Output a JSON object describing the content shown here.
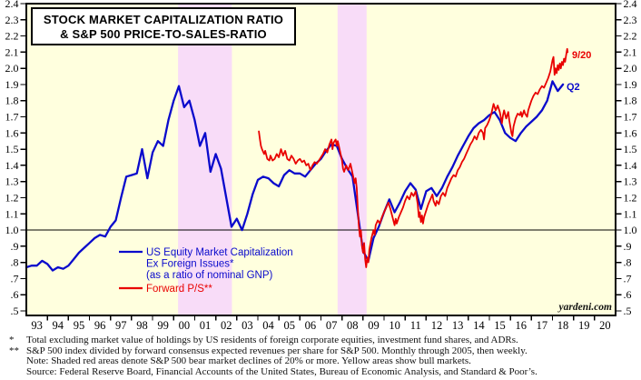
{
  "chart_data": {
    "type": "line",
    "title": "STOCK MARKET CAPITALIZATION RATIO & S&P 500 PRICE-TO-SALES-RATIO",
    "title_lines": [
      "STOCK MARKET CAPITALIZATION RATIO",
      "& S&P 500 PRICE-TO-SALES-RATIO"
    ],
    "watermark": "yardeni.com",
    "plot_bg_color": "#FFFFDE",
    "bear_band_color": "#F8DCF8",
    "x_axis": {
      "min": 1993,
      "max": 2021,
      "label_years": "93-20",
      "tick_unit": "year"
    },
    "y_axis": {
      "min": 0.5,
      "max": 2.4,
      "step": 0.1,
      "baseline": 1.0,
      "tick_labels_low": ".5 style below 1.0"
    },
    "grid": "off",
    "legend_position": "inside-bottom-left",
    "bands": [
      {
        "start": 2000.21,
        "end": 2002.77,
        "meaning": "S&P 500 bear market"
      },
      {
        "start": 2007.79,
        "end": 2009.17,
        "meaning": "S&P 500 bear market"
      }
    ],
    "series": [
      {
        "name": "US Equity Market Capitalization Ex Foreign Issues* (as a ratio of nominal GNP)",
        "legend_lines": [
          "US Equity Market Capitalization",
          "Ex Foreign Issues*",
          "(as a ratio of nominal GNP)"
        ],
        "color": "#0A0ACC",
        "end_label": "Q2",
        "points": [
          [
            1993.0,
            0.77
          ],
          [
            1993.25,
            0.78
          ],
          [
            1993.5,
            0.78
          ],
          [
            1993.75,
            0.81
          ],
          [
            1994.0,
            0.79
          ],
          [
            1994.25,
            0.75
          ],
          [
            1994.5,
            0.77
          ],
          [
            1994.75,
            0.76
          ],
          [
            1995.0,
            0.78
          ],
          [
            1995.25,
            0.82
          ],
          [
            1995.5,
            0.86
          ],
          [
            1995.75,
            0.89
          ],
          [
            1996.0,
            0.92
          ],
          [
            1996.25,
            0.95
          ],
          [
            1996.5,
            0.97
          ],
          [
            1996.75,
            0.96
          ],
          [
            1997.0,
            1.02
          ],
          [
            1997.25,
            1.06
          ],
          [
            1997.5,
            1.2
          ],
          [
            1997.75,
            1.33
          ],
          [
            1998.0,
            1.34
          ],
          [
            1998.25,
            1.35
          ],
          [
            1998.5,
            1.5
          ],
          [
            1998.75,
            1.32
          ],
          [
            1999.0,
            1.48
          ],
          [
            1999.25,
            1.55
          ],
          [
            1999.5,
            1.52
          ],
          [
            1999.75,
            1.68
          ],
          [
            2000.0,
            1.8
          ],
          [
            2000.25,
            1.89
          ],
          [
            2000.5,
            1.76
          ],
          [
            2000.75,
            1.8
          ],
          [
            2001.0,
            1.68
          ],
          [
            2001.25,
            1.52
          ],
          [
            2001.5,
            1.6
          ],
          [
            2001.75,
            1.36
          ],
          [
            2002.0,
            1.47
          ],
          [
            2002.25,
            1.38
          ],
          [
            2002.5,
            1.2
          ],
          [
            2002.75,
            1.02
          ],
          [
            2003.0,
            1.07
          ],
          [
            2003.25,
            1.0
          ],
          [
            2003.5,
            1.1
          ],
          [
            2003.75,
            1.22
          ],
          [
            2004.0,
            1.31
          ],
          [
            2004.25,
            1.33
          ],
          [
            2004.5,
            1.32
          ],
          [
            2004.75,
            1.29
          ],
          [
            2005.0,
            1.27
          ],
          [
            2005.25,
            1.34
          ],
          [
            2005.5,
            1.37
          ],
          [
            2005.75,
            1.35
          ],
          [
            2006.0,
            1.35
          ],
          [
            2006.25,
            1.33
          ],
          [
            2006.5,
            1.37
          ],
          [
            2006.75,
            1.41
          ],
          [
            2007.0,
            1.44
          ],
          [
            2007.25,
            1.49
          ],
          [
            2007.5,
            1.53
          ],
          [
            2007.75,
            1.52
          ],
          [
            2008.0,
            1.44
          ],
          [
            2008.25,
            1.38
          ],
          [
            2008.5,
            1.33
          ],
          [
            2008.75,
            1.1
          ],
          [
            2009.0,
            0.87
          ],
          [
            2009.25,
            0.81
          ],
          [
            2009.5,
            0.95
          ],
          [
            2009.75,
            1.02
          ],
          [
            2010.0,
            1.11
          ],
          [
            2010.25,
            1.19
          ],
          [
            2010.5,
            1.11
          ],
          [
            2010.75,
            1.17
          ],
          [
            2011.0,
            1.24
          ],
          [
            2011.25,
            1.29
          ],
          [
            2011.5,
            1.25
          ],
          [
            2011.75,
            1.13
          ],
          [
            2012.0,
            1.24
          ],
          [
            2012.25,
            1.26
          ],
          [
            2012.5,
            1.21
          ],
          [
            2012.75,
            1.26
          ],
          [
            2013.0,
            1.33
          ],
          [
            2013.25,
            1.39
          ],
          [
            2013.5,
            1.46
          ],
          [
            2013.75,
            1.52
          ],
          [
            2014.0,
            1.58
          ],
          [
            2014.25,
            1.63
          ],
          [
            2014.5,
            1.66
          ],
          [
            2014.75,
            1.68
          ],
          [
            2015.0,
            1.71
          ],
          [
            2015.25,
            1.73
          ],
          [
            2015.5,
            1.68
          ],
          [
            2015.75,
            1.6
          ],
          [
            2016.0,
            1.57
          ],
          [
            2016.25,
            1.55
          ],
          [
            2016.5,
            1.6
          ],
          [
            2016.75,
            1.64
          ],
          [
            2017.0,
            1.67
          ],
          [
            2017.25,
            1.7
          ],
          [
            2017.5,
            1.74
          ],
          [
            2017.75,
            1.8
          ],
          [
            2018.0,
            1.92
          ],
          [
            2018.25,
            1.86
          ],
          [
            2018.5,
            1.9
          ]
        ]
      },
      {
        "name": "Forward P/S**",
        "legend_lines": [
          "Forward P/S**"
        ],
        "color": "#E90000",
        "end_label": "9/20",
        "points": [
          [
            2004.05,
            1.61
          ],
          [
            2004.1,
            1.56
          ],
          [
            2004.15,
            1.52
          ],
          [
            2004.2,
            1.5
          ],
          [
            2004.3,
            1.47
          ],
          [
            2004.35,
            1.49
          ],
          [
            2004.45,
            1.44
          ],
          [
            2004.55,
            1.43
          ],
          [
            2004.6,
            1.46
          ],
          [
            2004.7,
            1.43
          ],
          [
            2004.8,
            1.44
          ],
          [
            2004.9,
            1.47
          ],
          [
            2005.0,
            1.45
          ],
          [
            2005.1,
            1.5
          ],
          [
            2005.2,
            1.46
          ],
          [
            2005.3,
            1.49
          ],
          [
            2005.4,
            1.44
          ],
          [
            2005.5,
            1.43
          ],
          [
            2005.6,
            1.46
          ],
          [
            2005.7,
            1.44
          ],
          [
            2005.8,
            1.41
          ],
          [
            2005.9,
            1.43
          ],
          [
            2006.0,
            1.44
          ],
          [
            2006.1,
            1.42
          ],
          [
            2006.2,
            1.43
          ],
          [
            2006.3,
            1.4
          ],
          [
            2006.4,
            1.41
          ],
          [
            2006.5,
            1.37
          ],
          [
            2006.6,
            1.4
          ],
          [
            2006.7,
            1.42
          ],
          [
            2006.8,
            1.41
          ],
          [
            2006.9,
            1.43
          ],
          [
            2007.0,
            1.45
          ],
          [
            2007.1,
            1.47
          ],
          [
            2007.2,
            1.5
          ],
          [
            2007.3,
            1.48
          ],
          [
            2007.4,
            1.53
          ],
          [
            2007.5,
            1.56
          ],
          [
            2007.55,
            1.5
          ],
          [
            2007.6,
            1.54
          ],
          [
            2007.7,
            1.56
          ],
          [
            2007.75,
            1.52
          ],
          [
            2007.8,
            1.55
          ],
          [
            2007.9,
            1.49
          ],
          [
            2008.0,
            1.43
          ],
          [
            2008.05,
            1.38
          ],
          [
            2008.1,
            1.36
          ],
          [
            2008.2,
            1.4
          ],
          [
            2008.3,
            1.37
          ],
          [
            2008.4,
            1.41
          ],
          [
            2008.5,
            1.35
          ],
          [
            2008.6,
            1.29
          ],
          [
            2008.65,
            1.32
          ],
          [
            2008.7,
            1.26
          ],
          [
            2008.75,
            1.13
          ],
          [
            2008.8,
            1.03
          ],
          [
            2008.85,
            0.96
          ],
          [
            2008.9,
            1.0
          ],
          [
            2008.95,
            0.9
          ],
          [
            2009.0,
            0.86
          ],
          [
            2009.05,
            0.92
          ],
          [
            2009.1,
            0.82
          ],
          [
            2009.15,
            0.77
          ],
          [
            2009.2,
            0.83
          ],
          [
            2009.25,
            0.8
          ],
          [
            2009.3,
            0.88
          ],
          [
            2009.4,
            0.95
          ],
          [
            2009.5,
            1.0
          ],
          [
            2009.55,
            0.97
          ],
          [
            2009.6,
            1.03
          ],
          [
            2009.7,
            1.06
          ],
          [
            2009.8,
            1.04
          ],
          [
            2009.9,
            1.08
          ],
          [
            2010.0,
            1.11
          ],
          [
            2010.1,
            1.14
          ],
          [
            2010.2,
            1.17
          ],
          [
            2010.3,
            1.13
          ],
          [
            2010.4,
            1.08
          ],
          [
            2010.5,
            1.03
          ],
          [
            2010.55,
            1.07
          ],
          [
            2010.6,
            1.04
          ],
          [
            2010.7,
            1.08
          ],
          [
            2010.8,
            1.11
          ],
          [
            2010.9,
            1.14
          ],
          [
            2011.0,
            1.18
          ],
          [
            2011.1,
            1.21
          ],
          [
            2011.2,
            1.19
          ],
          [
            2011.3,
            1.23
          ],
          [
            2011.4,
            1.21
          ],
          [
            2011.5,
            1.24
          ],
          [
            2011.6,
            1.16
          ],
          [
            2011.65,
            1.08
          ],
          [
            2011.7,
            1.11
          ],
          [
            2011.75,
            1.05
          ],
          [
            2011.8,
            1.09
          ],
          [
            2011.85,
            1.04
          ],
          [
            2011.9,
            1.08
          ],
          [
            2012.0,
            1.12
          ],
          [
            2012.1,
            1.16
          ],
          [
            2012.2,
            1.19
          ],
          [
            2012.3,
            1.22
          ],
          [
            2012.35,
            1.18
          ],
          [
            2012.45,
            1.15
          ],
          [
            2012.5,
            1.18
          ],
          [
            2012.6,
            1.16
          ],
          [
            2012.7,
            1.21
          ],
          [
            2012.8,
            1.23
          ],
          [
            2012.9,
            1.21
          ],
          [
            2013.0,
            1.26
          ],
          [
            2013.1,
            1.29
          ],
          [
            2013.2,
            1.32
          ],
          [
            2013.3,
            1.34
          ],
          [
            2013.4,
            1.33
          ],
          [
            2013.5,
            1.37
          ],
          [
            2013.6,
            1.39
          ],
          [
            2013.7,
            1.42
          ],
          [
            2013.8,
            1.44
          ],
          [
            2013.9,
            1.47
          ],
          [
            2014.0,
            1.5
          ],
          [
            2014.1,
            1.53
          ],
          [
            2014.2,
            1.55
          ],
          [
            2014.3,
            1.58
          ],
          [
            2014.4,
            1.56
          ],
          [
            2014.5,
            1.6
          ],
          [
            2014.6,
            1.62
          ],
          [
            2014.7,
            1.6
          ],
          [
            2014.75,
            1.56
          ],
          [
            2014.8,
            1.63
          ],
          [
            2014.9,
            1.65
          ],
          [
            2015.0,
            1.68
          ],
          [
            2015.1,
            1.72
          ],
          [
            2015.2,
            1.78
          ],
          [
            2015.3,
            1.74
          ],
          [
            2015.4,
            1.77
          ],
          [
            2015.5,
            1.73
          ],
          [
            2015.6,
            1.66
          ],
          [
            2015.65,
            1.71
          ],
          [
            2015.7,
            1.74
          ],
          [
            2015.8,
            1.69
          ],
          [
            2015.9,
            1.73
          ],
          [
            2015.95,
            1.68
          ],
          [
            2016.05,
            1.6
          ],
          [
            2016.1,
            1.58
          ],
          [
            2016.15,
            1.64
          ],
          [
            2016.25,
            1.69
          ],
          [
            2016.35,
            1.72
          ],
          [
            2016.45,
            1.71
          ],
          [
            2016.5,
            1.73
          ],
          [
            2016.55,
            1.7
          ],
          [
            2016.65,
            1.74
          ],
          [
            2016.7,
            1.72
          ],
          [
            2016.8,
            1.7
          ],
          [
            2016.85,
            1.74
          ],
          [
            2016.95,
            1.78
          ],
          [
            2017.0,
            1.8
          ],
          [
            2017.1,
            1.83
          ],
          [
            2017.2,
            1.85
          ],
          [
            2017.3,
            1.84
          ],
          [
            2017.4,
            1.87
          ],
          [
            2017.5,
            1.89
          ],
          [
            2017.6,
            1.88
          ],
          [
            2017.7,
            1.91
          ],
          [
            2017.8,
            1.94
          ],
          [
            2017.9,
            1.98
          ],
          [
            2018.0,
            2.05
          ],
          [
            2018.05,
            2.07
          ],
          [
            2018.1,
            1.96
          ],
          [
            2018.15,
            2.0
          ],
          [
            2018.2,
            1.97
          ],
          [
            2018.25,
            2.02
          ],
          [
            2018.3,
            1.99
          ],
          [
            2018.35,
            2.03
          ],
          [
            2018.4,
            2.0
          ],
          [
            2018.45,
            2.04
          ],
          [
            2018.5,
            2.02
          ],
          [
            2018.55,
            2.06
          ],
          [
            2018.6,
            2.04
          ],
          [
            2018.65,
            2.08
          ],
          [
            2018.7,
            2.12
          ],
          [
            2018.72,
            2.1
          ]
        ]
      }
    ]
  },
  "footnotes": [
    {
      "marker": "*",
      "text": "Total excluding market value of holdings by US residents of foreign corporate equities, investment fund shares, and ADRs."
    },
    {
      "marker": "**",
      "text": "S&P 500 index divided by forward consensus expected revenues per share for S&P 500. Monthly through 2005, then weekly."
    },
    {
      "marker": "",
      "text": "Note: Shaded red areas denote S&P 500 bear market declines of 20% or more. Yellow areas show bull markets."
    },
    {
      "marker": "",
      "text": "Source: Federal Reserve Board, Financial Accounts of the United States, Bureau of Economic Analysis, and Standard & Poor’s."
    }
  ]
}
